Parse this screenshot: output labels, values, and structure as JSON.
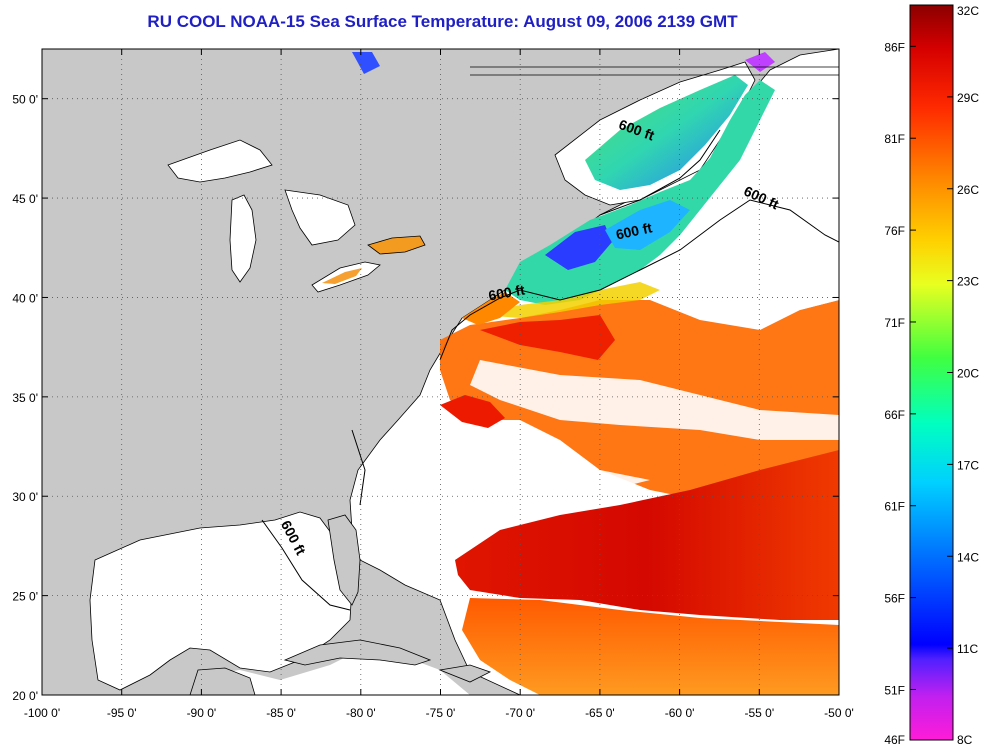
{
  "title": "RU COOL  NOAA-15  Sea Surface Temperature:  August 09, 2006 2139 GMT",
  "map": {
    "lon_range": [
      -100,
      -50
    ],
    "lat_range": [
      20,
      52.5
    ],
    "grid": "dotted",
    "lon_ticks": [
      {
        "value": -100,
        "label": "-100 0'"
      },
      {
        "value": -95,
        "label": "-95 0'"
      },
      {
        "value": -90,
        "label": "-90 0'"
      },
      {
        "value": -85,
        "label": "-85 0'"
      },
      {
        "value": -80,
        "label": "-80 0'"
      },
      {
        "value": -75,
        "label": "-75 0'"
      },
      {
        "value": -70,
        "label": "-70 0'"
      },
      {
        "value": -65,
        "label": "-65 0'"
      },
      {
        "value": -60,
        "label": "-60 0'"
      },
      {
        "value": -55,
        "label": "-55 0'"
      },
      {
        "value": -50,
        "label": "-50 0'"
      }
    ],
    "lat_ticks": [
      {
        "value": 50,
        "label": "50 0'"
      },
      {
        "value": 45,
        "label": "45 0'"
      },
      {
        "value": 40,
        "label": "40 0'"
      },
      {
        "value": 35,
        "label": "35 0'"
      },
      {
        "value": 30,
        "label": "30 0'"
      },
      {
        "value": 25,
        "label": "25 0'"
      },
      {
        "value": 20,
        "label": "20 0'"
      }
    ],
    "contour_labels": [
      {
        "text": "600 ft",
        "lon": -62.8,
        "lat": 48.2,
        "rotate": 20
      },
      {
        "text": "600 ft",
        "lon": -55.0,
        "lat": 44.8,
        "rotate": 25
      },
      {
        "text": "600 ft",
        "lon": -62.8,
        "lat": 43.1,
        "rotate": -12
      },
      {
        "text": "600 ft",
        "lon": -70.8,
        "lat": 40.0,
        "rotate": -10
      },
      {
        "text": "600 ft",
        "lon": -84.5,
        "lat": 27.8,
        "rotate": 62
      }
    ],
    "colors": {
      "land": "#c8c8c8",
      "ocean_nodata": "#ffffff",
      "coastline": "#000000"
    }
  },
  "colorbar": {
    "celsius_labels": [
      "32C",
      "29C",
      "26C",
      "23C",
      "20C",
      "17C",
      "14C",
      "11C",
      "8C"
    ],
    "fahrenheit_labels": [
      "86F",
      "81F",
      "76F",
      "71F",
      "66F",
      "61F",
      "56F",
      "51F",
      "46F"
    ],
    "range_c": [
      8,
      32
    ],
    "colors": [
      "#ff1cd7",
      "#8b2aff",
      "#0000ff",
      "#0060ff",
      "#00c8ff",
      "#00ffc0",
      "#5aff50",
      "#e8ff20",
      "#ffd000",
      "#ff8a00",
      "#ff3000",
      "#ee0000",
      "#8b0000"
    ]
  }
}
